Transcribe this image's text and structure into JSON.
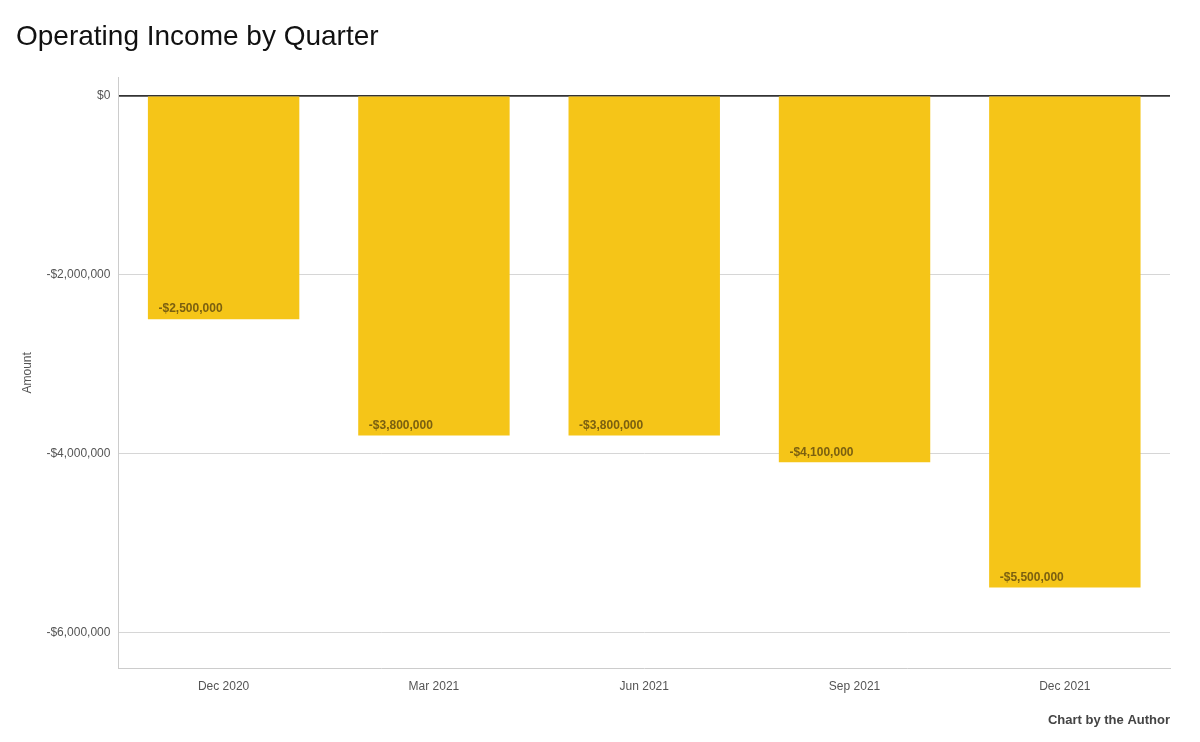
{
  "chart_data": {
    "type": "bar",
    "title": "Operating Income by Quarter",
    "categories": [
      "Dec 2020",
      "Mar 2021",
      "Jun 2021",
      "Sep 2021",
      "Dec 2021"
    ],
    "values": [
      -2500000,
      -3800000,
      -3800000,
      -4100000,
      -5500000
    ],
    "value_labels": [
      "-$2,500,000",
      "-$3,800,000",
      "-$3,800,000",
      "-$4,100,000",
      "-$5,500,000"
    ],
    "data_labels": true,
    "color": "#F5C518",
    "ylim": [
      -6400000,
      200000
    ],
    "yticks": [
      {
        "value": 0,
        "label": "$0"
      },
      {
        "value": -2000000,
        "label": "-$2,000,000"
      },
      {
        "value": -4000000,
        "label": "-$4,000,000"
      },
      {
        "value": -6000000,
        "label": "-$6,000,000"
      }
    ],
    "ylabel": "Amount",
    "grid": true,
    "annotation": "Chart by the Author"
  }
}
